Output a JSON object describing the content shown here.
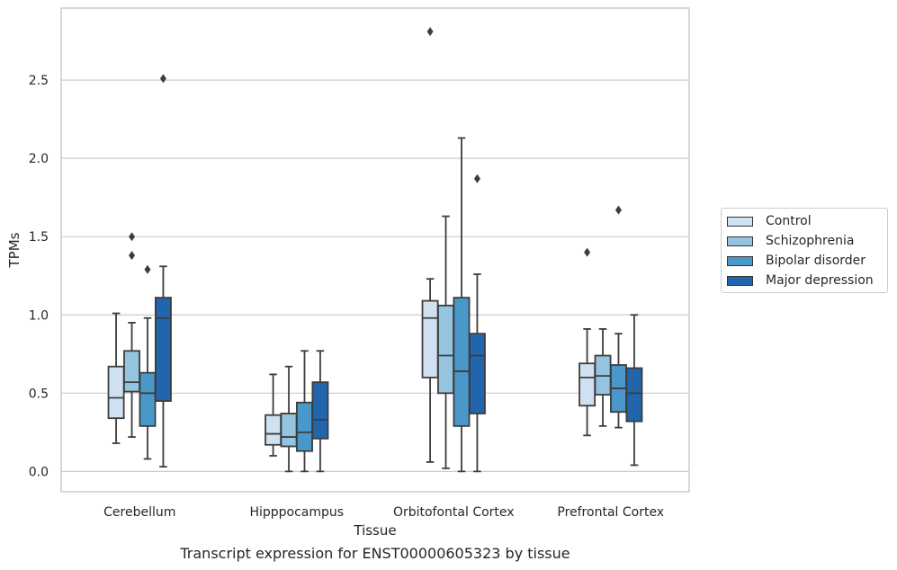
{
  "chart_data": {
    "type": "box",
    "xlabel": "Tissue",
    "ylabel": "TPMs",
    "caption": "Transcript expression for ENST00000605323 by tissue",
    "ylim": [
      -0.13,
      2.96
    ],
    "yticks": [
      "0.0",
      "0.5",
      "1.0",
      "1.5",
      "2.0",
      "2.5"
    ],
    "categories": [
      "Cerebellum",
      "Hipppocampus",
      "Orbitofontal Cortex",
      "Prefrontal Cortex"
    ],
    "grid": "horizontal",
    "legend_position": "right",
    "series": [
      {
        "name": "Control",
        "color": "#d0e1f2",
        "boxes": [
          {
            "whislo": 0.18,
            "q1": 0.34,
            "med": 0.47,
            "q3": 0.67,
            "whishi": 1.01,
            "fliers": []
          },
          {
            "whislo": 0.1,
            "q1": 0.17,
            "med": 0.24,
            "q3": 0.36,
            "whishi": 0.62,
            "fliers": []
          },
          {
            "whislo": 0.06,
            "q1": 0.6,
            "med": 0.98,
            "q3": 1.09,
            "whishi": 1.23,
            "fliers": [
              2.81
            ]
          },
          {
            "whislo": 0.23,
            "q1": 0.42,
            "med": 0.6,
            "q3": 0.69,
            "whishi": 0.91,
            "fliers": [
              1.4
            ]
          }
        ]
      },
      {
        "name": "Schizophrenia",
        "color": "#94c4df",
        "boxes": [
          {
            "whislo": 0.22,
            "q1": 0.51,
            "med": 0.57,
            "q3": 0.77,
            "whishi": 0.95,
            "fliers": [
              1.38,
              1.5
            ]
          },
          {
            "whislo": 0.0,
            "q1": 0.16,
            "med": 0.22,
            "q3": 0.37,
            "whishi": 0.67,
            "fliers": []
          },
          {
            "whislo": 0.02,
            "q1": 0.5,
            "med": 0.74,
            "q3": 1.06,
            "whishi": 1.63,
            "fliers": []
          },
          {
            "whislo": 0.29,
            "q1": 0.49,
            "med": 0.61,
            "q3": 0.74,
            "whishi": 0.91,
            "fliers": []
          }
        ]
      },
      {
        "name": "Bipolar disorder",
        "color": "#4a98c9",
        "boxes": [
          {
            "whislo": 0.08,
            "q1": 0.29,
            "med": 0.5,
            "q3": 0.63,
            "whishi": 0.98,
            "fliers": [
              1.29
            ]
          },
          {
            "whislo": 0.0,
            "q1": 0.13,
            "med": 0.25,
            "q3": 0.44,
            "whishi": 0.77,
            "fliers": []
          },
          {
            "whislo": 0.0,
            "q1": 0.29,
            "med": 0.64,
            "q3": 1.11,
            "whishi": 2.13,
            "fliers": []
          },
          {
            "whislo": 0.28,
            "q1": 0.38,
            "med": 0.53,
            "q3": 0.68,
            "whishi": 0.88,
            "fliers": [
              1.67
            ]
          }
        ]
      },
      {
        "name": "Major depression",
        "color": "#2166ac",
        "boxes": [
          {
            "whislo": 0.03,
            "q1": 0.45,
            "med": 0.98,
            "q3": 1.11,
            "whishi": 1.31,
            "fliers": [
              2.51
            ]
          },
          {
            "whislo": 0.0,
            "q1": 0.21,
            "med": 0.33,
            "q3": 0.57,
            "whishi": 0.77,
            "fliers": []
          },
          {
            "whislo": 0.0,
            "q1": 0.37,
            "med": 0.74,
            "q3": 0.88,
            "whishi": 1.26,
            "fliers": [
              1.87
            ]
          },
          {
            "whislo": 0.04,
            "q1": 0.32,
            "med": 0.5,
            "q3": 0.66,
            "whishi": 1.0,
            "fliers": []
          }
        ]
      }
    ]
  }
}
